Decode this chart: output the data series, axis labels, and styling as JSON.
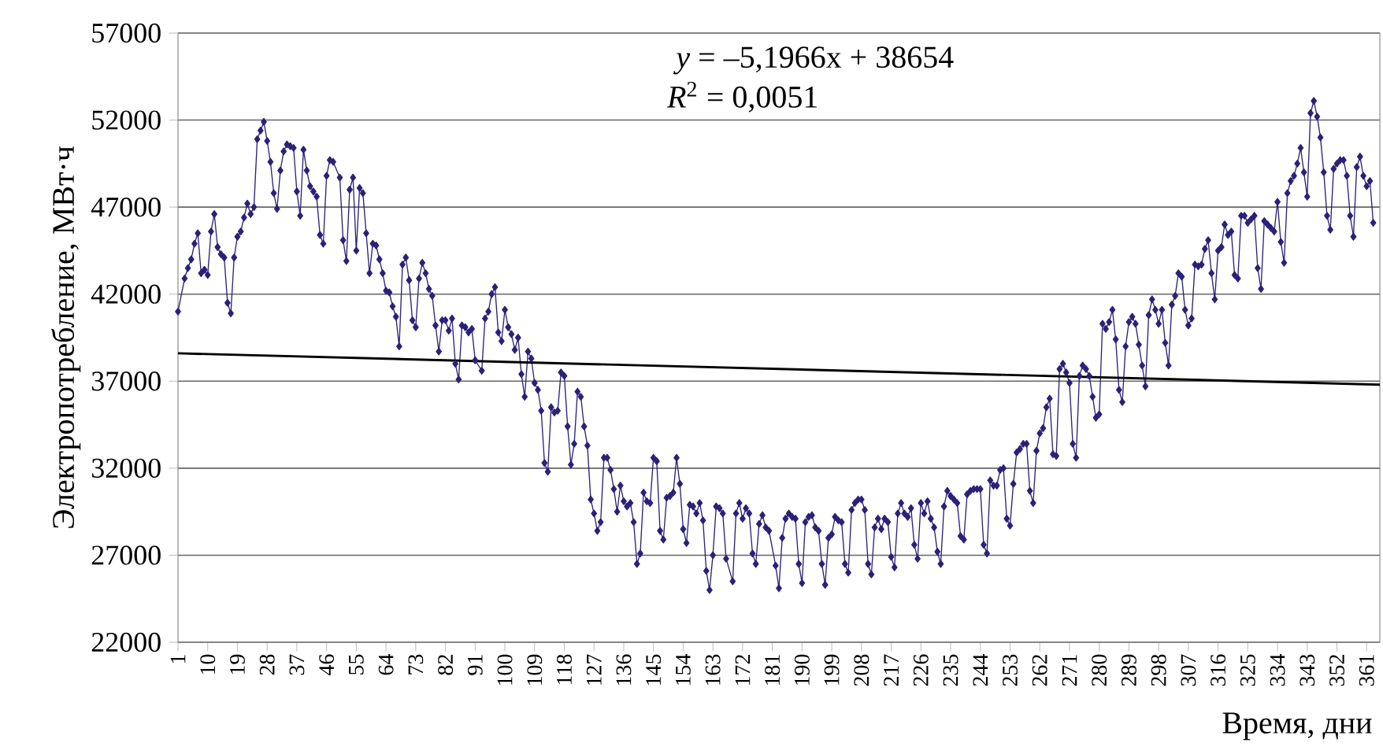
{
  "chart_data": {
    "type": "line",
    "xlabel": "Время, дни",
    "ylabel": "Электропотребление, МВт·ч",
    "annotations": [
      "*y* = –5,1966x + 38654",
      "*R*$^{2}$ = 0,0051"
    ],
    "xlim": [
      1,
      365
    ],
    "xticks": [
      1,
      10,
      19,
      28,
      37,
      46,
      55,
      64,
      73,
      82,
      91,
      100,
      109,
      118,
      127,
      136,
      145,
      154,
      163,
      172,
      181,
      190,
      199,
      208,
      217,
      226,
      235,
      244,
      253,
      262,
      271,
      280,
      289,
      298,
      307,
      316,
      325,
      334,
      343,
      352,
      361
    ],
    "ylim": [
      22000,
      57000
    ],
    "yticks": [
      22000,
      27000,
      32000,
      37000,
      42000,
      47000,
      52000,
      57000
    ],
    "grid": "y",
    "marker": "diamond",
    "line_style": "solid",
    "series": [
      {
        "color": "#2b2178",
        "x": [
          1,
          3,
          4,
          5,
          6,
          7,
          8,
          9,
          10,
          11,
          12,
          13,
          14,
          15,
          16,
          17,
          18,
          19,
          20,
          21,
          22,
          23,
          24,
          25,
          26,
          27,
          28,
          29,
          30,
          31,
          32,
          33,
          34,
          35,
          36,
          37,
          38,
          39,
          40,
          41,
          42,
          43,
          44,
          45,
          46,
          47,
          48,
          50,
          51,
          52,
          53,
          54,
          55,
          56,
          57,
          58,
          59,
          60,
          61,
          62,
          63,
          64,
          65,
          66,
          67,
          68,
          69,
          70,
          71,
          72,
          73,
          74,
          75,
          76,
          77,
          78,
          79,
          80,
          81,
          82,
          83,
          84,
          85,
          86,
          87,
          88,
          89,
          90,
          91,
          93,
          94,
          95,
          96,
          97,
          98,
          99,
          100,
          101,
          102,
          103,
          104,
          105,
          106,
          107,
          108,
          109,
          110,
          111,
          112,
          113,
          114,
          115,
          116,
          117,
          118,
          119,
          120,
          121,
          122,
          123,
          124,
          125,
          126,
          127,
          128,
          129,
          130,
          131,
          132,
          133,
          134,
          135,
          136,
          137,
          138,
          139,
          140,
          141,
          142,
          143,
          144,
          145,
          146,
          147,
          148,
          149,
          150,
          151,
          152,
          153,
          154,
          155,
          156,
          157,
          158,
          159,
          160,
          161,
          162,
          163,
          164,
          165,
          166,
          167,
          169,
          170,
          171,
          172,
          173,
          174,
          175,
          176,
          177,
          178,
          179,
          180,
          182,
          183,
          184,
          185,
          186,
          187,
          188,
          189,
          190,
          191,
          192,
          193,
          194,
          195,
          196,
          197,
          198,
          199,
          200,
          201,
          202,
          203,
          204,
          205,
          206,
          207,
          208,
          209,
          210,
          211,
          212,
          213,
          214,
          215,
          216,
          217,
          218,
          219,
          220,
          221,
          222,
          223,
          224,
          225,
          226,
          227,
          228,
          229,
          230,
          231,
          232,
          233,
          234,
          235,
          236,
          237,
          238,
          239,
          240,
          241,
          242,
          243,
          244,
          245,
          246,
          247,
          248,
          249,
          250,
          251,
          252,
          253,
          254,
          255,
          256,
          257,
          258,
          259,
          260,
          261,
          262,
          263,
          264,
          265,
          266,
          267,
          268,
          269,
          270,
          271,
          272,
          273,
          274,
          275,
          276,
          277,
          278,
          279,
          280,
          281,
          282,
          283,
          284,
          285,
          286,
          287,
          288,
          289,
          290,
          291,
          292,
          293,
          294,
          295,
          296,
          297,
          298,
          299,
          300,
          301,
          302,
          303,
          304,
          305,
          306,
          307,
          308,
          309,
          310,
          311,
          312,
          313,
          314,
          315,
          316,
          317,
          318,
          319,
          320,
          321,
          322,
          323,
          324,
          325,
          326,
          327,
          328,
          329,
          330,
          331,
          332,
          333,
          334,
          335,
          336,
          337,
          338,
          339,
          340,
          341,
          342,
          343,
          344,
          345,
          346,
          347,
          348,
          349,
          350,
          351,
          352,
          353,
          354,
          355,
          356,
          357,
          358,
          359,
          360,
          361,
          362,
          363
        ],
        "values": [
          41000,
          42900,
          43500,
          44000,
          44900,
          45500,
          43200,
          43400,
          43100,
          45600,
          46600,
          44700,
          44300,
          44100,
          41500,
          40900,
          44100,
          45300,
          45600,
          46400,
          47200,
          46600,
          47000,
          50900,
          51400,
          51900,
          50800,
          49600,
          47800,
          46900,
          49100,
          50200,
          50600,
          50500,
          50400,
          47900,
          46500,
          50300,
          49100,
          48200,
          47900,
          47600,
          45400,
          44900,
          48800,
          49700,
          49600,
          48700,
          45100,
          43900,
          48000,
          48700,
          44500,
          48100,
          47800,
          45500,
          43200,
          44900,
          44800,
          44000,
          43200,
          42200,
          42100,
          41300,
          40700,
          39000,
          43700,
          44100,
          42800,
          40500,
          40100,
          42900,
          43800,
          43200,
          42300,
          41900,
          40200,
          38700,
          40500,
          40500,
          39900,
          40600,
          38000,
          37100,
          40200,
          40100,
          39800,
          40000,
          38200,
          37600,
          40600,
          41000,
          42000,
          42400,
          39800,
          39300,
          41100,
          40100,
          39700,
          38800,
          39500,
          37400,
          36100,
          38700,
          38300,
          36900,
          36500,
          35300,
          32300,
          31800,
          35500,
          35200,
          35300,
          37500,
          37300,
          34400,
          32200,
          33400,
          36400,
          36100,
          34400,
          33300,
          30200,
          29400,
          28400,
          28900,
          32600,
          32600,
          31900,
          30800,
          29500,
          31000,
          30100,
          29800,
          30000,
          28900,
          26500,
          27100,
          30600,
          30100,
          30000,
          32600,
          32400,
          28400,
          27900,
          30300,
          30400,
          30600,
          32600,
          31100,
          28500,
          27700,
          29900,
          29800,
          29400,
          30000,
          29000,
          26100,
          25000,
          27000,
          29800,
          29700,
          29400,
          26800,
          25500,
          29400,
          30000,
          29100,
          29700,
          29400,
          27100,
          26500,
          28800,
          29300,
          28600,
          28400,
          26400,
          25100,
          28000,
          29100,
          29400,
          29200,
          29100,
          26500,
          25400,
          28900,
          29200,
          29300,
          28600,
          28400,
          26500,
          25300,
          28000,
          28200,
          29200,
          29000,
          28900,
          26500,
          26000,
          29600,
          30000,
          30200,
          30200,
          29600,
          26500,
          25900,
          28600,
          29100,
          28500,
          29100,
          28900,
          26900,
          26300,
          29400,
          30000,
          29400,
          29200,
          29700,
          27600,
          26800,
          30000,
          29400,
          30100,
          29100,
          28600,
          27200,
          26500,
          29800,
          30700,
          30400,
          30200,
          30000,
          28100,
          27900,
          30500,
          30700,
          30800,
          30800,
          30800,
          27600,
          27100,
          31300,
          31000,
          31000,
          31900,
          32000,
          29100,
          28700,
          31100,
          32900,
          33100,
          33400,
          33400,
          30700,
          30000,
          33000,
          34000,
          34300,
          35500,
          36000,
          32800,
          32700,
          37700,
          38000,
          37500,
          36900,
          33400,
          32600,
          37300,
          37900,
          37700,
          37300,
          36100,
          34900,
          35100,
          40300,
          40000,
          40400,
          41100,
          39400,
          36500,
          35800,
          39000,
          40400,
          40700,
          40300,
          39100,
          37900,
          36700,
          40800,
          41700,
          41100,
          40300,
          41100,
          39200,
          37900,
          41400,
          41900,
          43200,
          43000,
          41100,
          40200,
          40600,
          43700,
          43600,
          43700,
          44600,
          45100,
          43200,
          41700,
          44500,
          44700,
          46000,
          45400,
          45600,
          43100,
          42900,
          46500,
          46500,
          46100,
          46300,
          46500,
          43500,
          42300,
          46200,
          46000,
          45800,
          45600,
          47300,
          45000,
          43800,
          47800,
          48500,
          48800,
          49500,
          50400,
          49000,
          47600,
          52400,
          53100,
          52200,
          51000,
          49000,
          46500,
          45700,
          49200,
          49500,
          49700,
          49700,
          48800,
          46500,
          45300,
          49300,
          49900,
          48800,
          48200,
          48500,
          46100
        ]
      },
      {
        "type": "line",
        "color": "#000000",
        "marker": "none",
        "x": [
          1,
          365
        ],
        "values": [
          38600,
          36800
        ]
      }
    ]
  }
}
